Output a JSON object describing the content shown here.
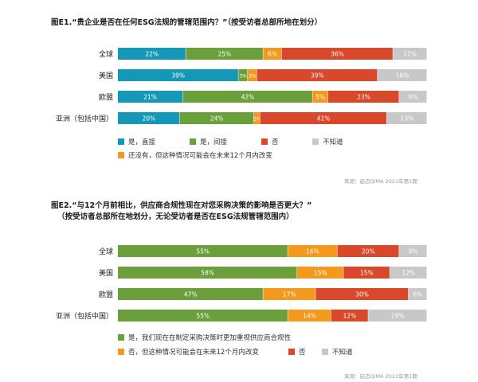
{
  "colors": {
    "teal": "#1597b8",
    "green": "#6a9f3c",
    "orange": "#f39a1e",
    "red": "#d9482b",
    "gray": "#c8c8c8"
  },
  "chart_data": [
    {
      "type": "bar",
      "orientation": "horizontal",
      "stacked": true,
      "title": "图E1.“贵企业是否在任何ESG法规的管辖范围内？”（按受访者总部所地在划分）",
      "categories": [
        "全球",
        "美国",
        "欧盟",
        "亚洲（包括中国）"
      ],
      "series": [
        {
          "name": "是，直接",
          "color": "#1597b8",
          "values": [
            22,
            39,
            21,
            20
          ],
          "labels": [
            "22%",
            "39%",
            "21%",
            "20%"
          ]
        },
        {
          "name": "是，间接",
          "color": "#6a9f3c",
          "values": [
            25,
            3,
            42,
            24
          ],
          "labels": [
            "25%",
            "3%",
            "42%",
            "24%"
          ]
        },
        {
          "name": "还没有，但这种情况可能会在未来12个月内改变",
          "color": "#f39a1e",
          "values": [
            6,
            3,
            5,
            2
          ],
          "labels": [
            "6%",
            "3%",
            "5%",
            "2%"
          ]
        },
        {
          "name": "否",
          "color": "#d9482b",
          "values": [
            36,
            39,
            23,
            41
          ],
          "labels": [
            "36%",
            "39%",
            "23%",
            "41%"
          ]
        },
        {
          "name": "不知道",
          "color": "#c8c8c8",
          "values": [
            11,
            16,
            9,
            13
          ],
          "labels": [
            "11%",
            "16%",
            "9%",
            "13%"
          ]
        }
      ],
      "source": "来源：启迈QIMA 2023年第1期",
      "legend_rows": [
        [
          "是，直接",
          "是，间接",
          "否",
          "不知道"
        ],
        [
          "还没有，但这种情况可能会在未来12个月内改变"
        ]
      ]
    },
    {
      "type": "bar",
      "orientation": "horizontal",
      "stacked": true,
      "title": "图E2.“与12个月前相比，供应商合规性现在对您采购决策的影响是否更大？”",
      "subtitle": "（按受访者总部所在地划分，无论受访者是否在ESG法规管辖范围内）",
      "categories": [
        "全球",
        "美国",
        "欧盟",
        "亚洲（包括中国）"
      ],
      "series": [
        {
          "name": "是，我们现在在制定采购决策时更加重视供应商合规性",
          "color": "#6a9f3c",
          "values": [
            55,
            58,
            47,
            55
          ],
          "labels": [
            "55%",
            "58%",
            "47%",
            "55%"
          ]
        },
        {
          "name": "否，但这种情况可能会在未来12个月内改变",
          "color": "#f39a1e",
          "values": [
            16,
            15,
            17,
            14
          ],
          "labels": [
            "16%",
            "15%",
            "17%",
            "14%"
          ]
        },
        {
          "name": "否",
          "color": "#d9482b",
          "values": [
            20,
            15,
            30,
            12
          ],
          "labels": [
            "20%",
            "15%",
            "30%",
            "12%"
          ]
        },
        {
          "name": "不知道",
          "color": "#c8c8c8",
          "values": [
            9,
            12,
            6,
            19
          ],
          "labels": [
            "9%",
            "12%",
            "6%",
            "19%"
          ]
        }
      ],
      "source": "来源：启迈QIMA 2023年第1期",
      "legend_rows": [
        [
          "是，我们现在在制定采购决策时更加重视供应商合规性"
        ],
        [
          "否，但这种情况可能会在未来12个月内改变",
          "否",
          "不知道"
        ]
      ]
    }
  ]
}
